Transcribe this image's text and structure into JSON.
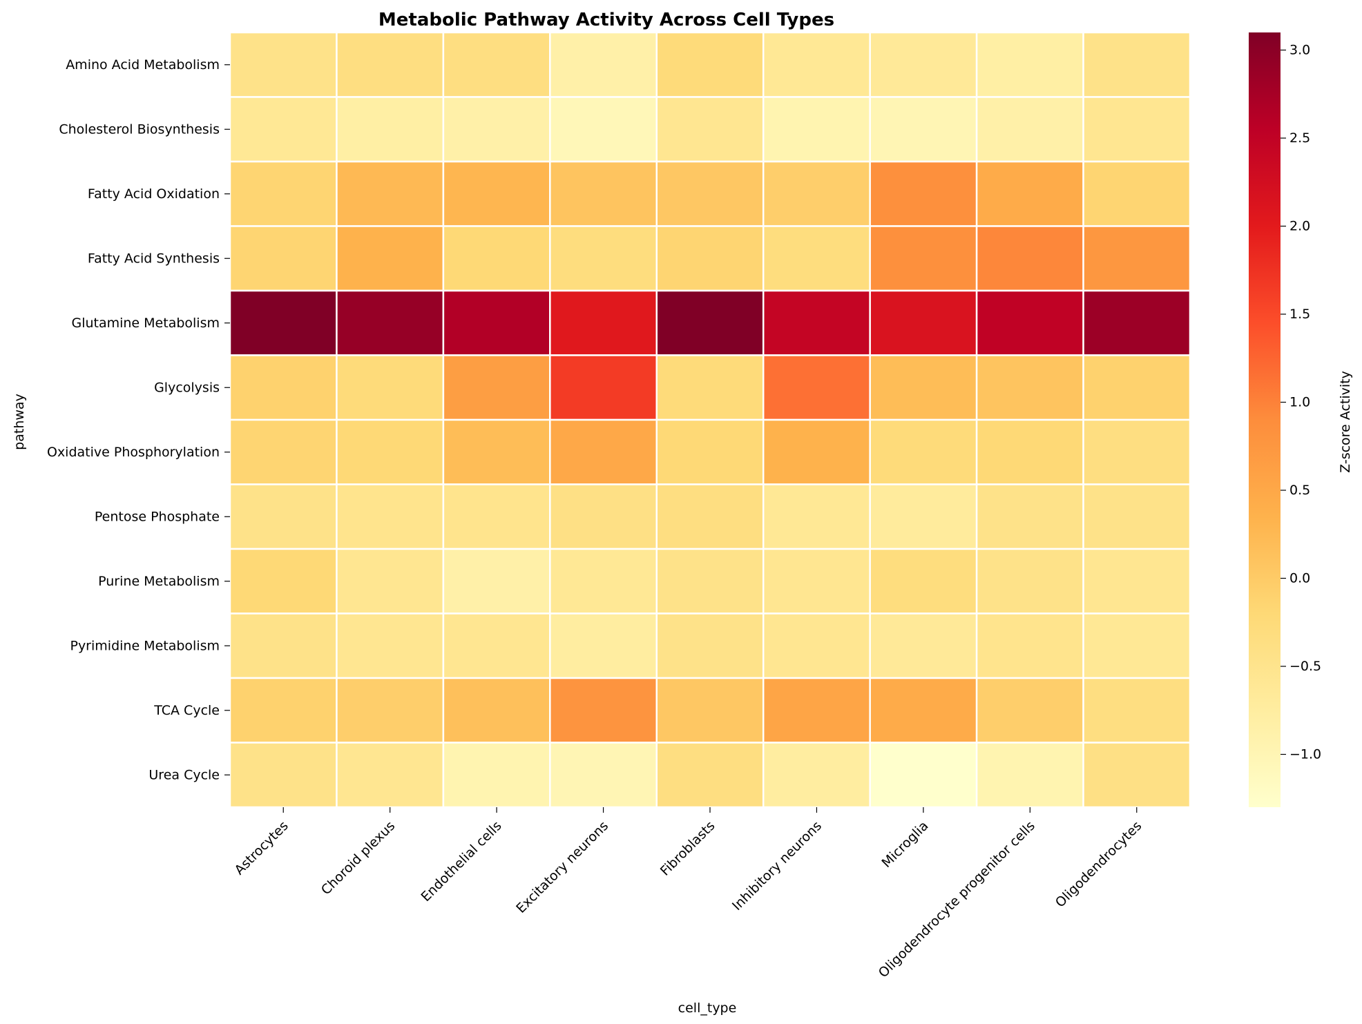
{
  "chart_data": {
    "type": "heatmap",
    "title": "Metabolic Pathway Activity Across Cell Types",
    "xlabel": "cell_type",
    "ylabel": "pathway",
    "x_categories": [
      "Astrocytes",
      "Choroid plexus",
      "Endothelial cells",
      "Excitatory neurons",
      "Fibroblasts",
      "Inhibitory neurons",
      "Microglia",
      "Oligodendrocyte progenitor cells",
      "Oligodendrocytes"
    ],
    "y_categories": [
      "Amino Acid Metabolism",
      "Cholesterol Biosynthesis",
      "Fatty Acid Oxidation",
      "Fatty Acid Synthesis",
      "Glutamine Metabolism",
      "Glycolysis",
      "Oxidative Phosphorylation",
      "Pentose Phosphate",
      "Purine Metabolism",
      "Pyrimidine Metabolism",
      "TCA Cycle",
      "Urea Cycle"
    ],
    "values": [
      [
        -0.45,
        -0.35,
        -0.35,
        -0.85,
        -0.25,
        -0.6,
        -0.65,
        -0.8,
        -0.45
      ],
      [
        -0.6,
        -0.8,
        -0.85,
        -1.05,
        -0.55,
        -0.95,
        -1.0,
        -0.85,
        -0.55
      ],
      [
        -0.15,
        0.25,
        0.3,
        0.1,
        0.05,
        -0.05,
        0.85,
        0.45,
        -0.15
      ],
      [
        -0.15,
        0.35,
        -0.2,
        -0.3,
        -0.15,
        -0.3,
        0.85,
        0.95,
        0.75
      ],
      [
        3.1,
        2.9,
        2.65,
        2.05,
        3.1,
        2.45,
        2.15,
        2.5,
        2.85
      ],
      [
        -0.1,
        -0.25,
        0.65,
        1.65,
        -0.25,
        1.15,
        0.2,
        0.1,
        -0.1
      ],
      [
        -0.15,
        -0.2,
        0.2,
        0.5,
        -0.2,
        0.35,
        -0.25,
        -0.2,
        -0.35
      ],
      [
        -0.45,
        -0.5,
        -0.5,
        -0.4,
        -0.35,
        -0.6,
        -0.7,
        -0.45,
        -0.45
      ],
      [
        -0.2,
        -0.55,
        -0.85,
        -0.6,
        -0.45,
        -0.55,
        -0.3,
        -0.45,
        -0.55
      ],
      [
        -0.45,
        -0.55,
        -0.55,
        -0.75,
        -0.45,
        -0.55,
        -0.65,
        -0.5,
        -0.6
      ],
      [
        -0.1,
        -0.05,
        0.15,
        0.8,
        0.05,
        0.55,
        0.45,
        -0.05,
        -0.35
      ],
      [
        -0.45,
        -0.55,
        -0.95,
        -1.0,
        -0.35,
        -0.75,
        -1.3,
        -0.95,
        -0.4
      ]
    ],
    "colorbar": {
      "label": "Z-score Activity",
      "min": -1.3,
      "max": 3.1,
      "ticks": [
        -1.0,
        -0.5,
        0.0,
        0.5,
        1.0,
        1.5,
        2.0,
        2.5,
        3.0
      ],
      "tick_labels": [
        "−1.0",
        "−0.5",
        "0.0",
        "0.5",
        "1.0",
        "1.5",
        "2.0",
        "2.5",
        "3.0"
      ]
    },
    "colormap": "YlOrRd",
    "colormap_stops": [
      "#ffffcc",
      "#ffeda0",
      "#fed976",
      "#feb24c",
      "#fd8d3c",
      "#fc4e2a",
      "#e31a1c",
      "#bd0026",
      "#800026"
    ],
    "cell_border_color": "#ffffff",
    "grid": false
  }
}
